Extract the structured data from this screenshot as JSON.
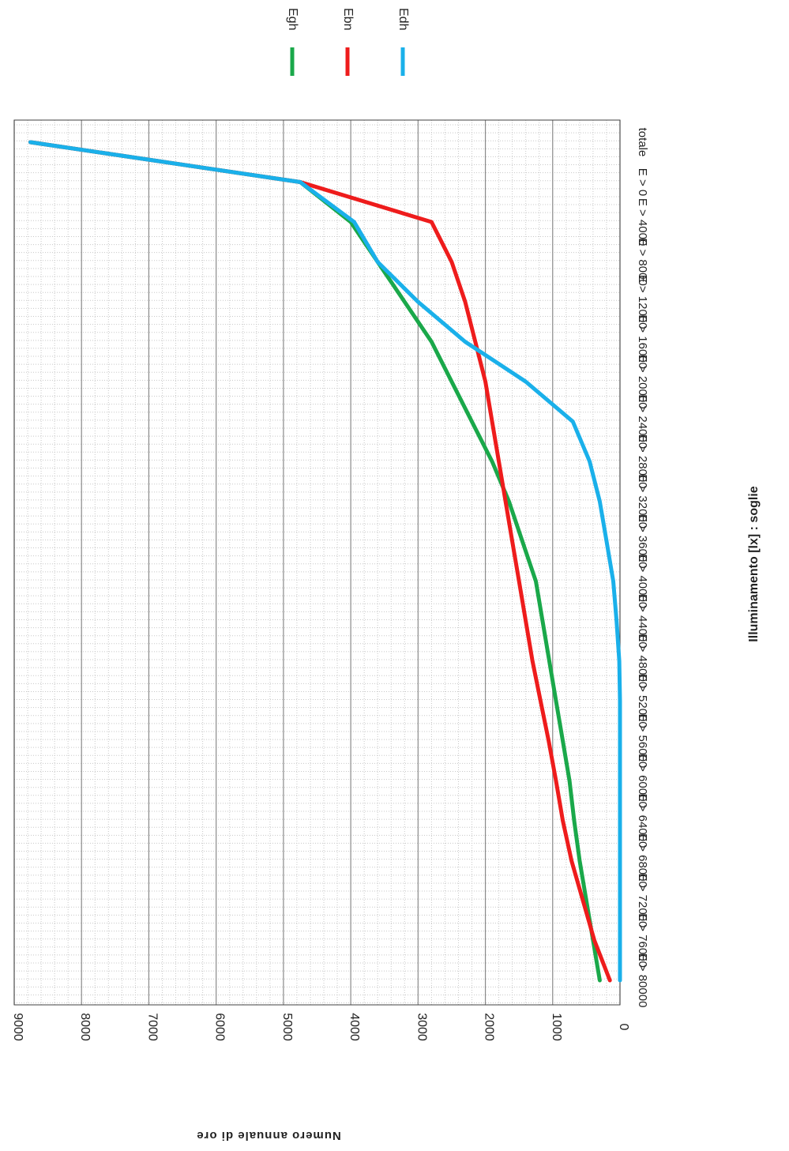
{
  "chart_data": {
    "type": "line",
    "orientation": "rotated-90-clockwise",
    "xlabel": "Illuminamento [lx] : soglie",
    "ylabel": "Numero annuale di ore",
    "categories": [
      "totale",
      "E > 0",
      "E > 4000",
      "E > 8000",
      "E > 12000",
      "E > 16000",
      "E > 20000",
      "E > 24000",
      "E > 28000",
      "E > 32000",
      "E > 36000",
      "E > 40000",
      "E > 44000",
      "E > 48000",
      "E > 52000",
      "E > 56000",
      "E > 60000",
      "E > 64000",
      "E > 68000",
      "E > 72000",
      "E > 76000",
      "E > 80000"
    ],
    "y_ticks": [
      "0",
      "1000",
      "2000",
      "3000",
      "4000",
      "5000",
      "6000",
      "7000",
      "8000",
      "9000"
    ],
    "ylim": [
      0,
      9000
    ],
    "grid": true,
    "legend_position": "top",
    "series": [
      {
        "name": "Egh",
        "color": "#1aa84a",
        "values": [
          8760,
          4750,
          4000,
          3600,
          3200,
          2800,
          2500,
          2200,
          1900,
          1650,
          1450,
          1250,
          1150,
          1050,
          950,
          850,
          750,
          680,
          600,
          500,
          400,
          300
        ]
      },
      {
        "name": "Ebn",
        "color": "#ee1c1c",
        "values": [
          8760,
          4750,
          2800,
          2500,
          2300,
          2150,
          2000,
          1900,
          1800,
          1700,
          1600,
          1500,
          1400,
          1300,
          1180,
          1060,
          950,
          850,
          720,
          550,
          380,
          150
        ]
      },
      {
        "name": "Edh",
        "color": "#1ab0ea",
        "values": [
          8760,
          4750,
          3950,
          3600,
          3000,
          2300,
          1400,
          700,
          450,
          300,
          200,
          100,
          50,
          10,
          0,
          0,
          0,
          0,
          0,
          0,
          0,
          0
        ]
      }
    ]
  }
}
